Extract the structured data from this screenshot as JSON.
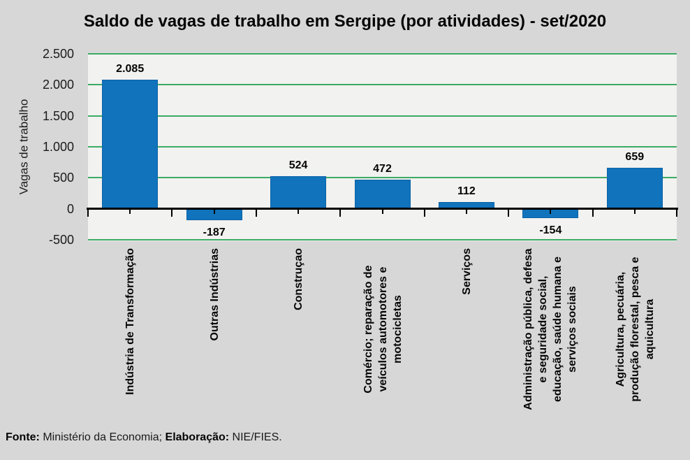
{
  "footer": {
    "fonte_label": "Fonte:",
    "fonte_value": " Ministério da Economia; ",
    "elab_label": "Elaboração:",
    "elab_value": " NIE/FIES."
  },
  "chart_data": {
    "type": "bar",
    "title": "Saldo de vagas de trabalho em Sergipe (por atividades) - set/2020",
    "xlabel": "",
    "ylabel": "Vagas de trabalho",
    "ylim": [
      -500,
      2500
    ],
    "grid": true,
    "legend": false,
    "yticks": [
      {
        "value": 2500,
        "label": "2.500"
      },
      {
        "value": 2000,
        "label": "2.000"
      },
      {
        "value": 1500,
        "label": "1.500"
      },
      {
        "value": 1000,
        "label": "1.000"
      },
      {
        "value": 500,
        "label": "500"
      },
      {
        "value": 0,
        "label": "0"
      },
      {
        "value": -500,
        "label": "-500"
      }
    ],
    "categories": [
      "Indústria de Transformação",
      "Outras Indústrias",
      "Construçao",
      "Comércio; reparação de veículos automotores e motocicletas",
      "Serviços",
      "Administração pública, defesa e seguridade social, educação, saúde humana e serviços sociais",
      "Agricultura, pecuária, produção florestal, pesca e aquicultura"
    ],
    "values": [
      2085,
      -187,
      524,
      472,
      112,
      -154,
      659
    ],
    "value_labels": [
      "2.085",
      "-187",
      "524",
      "472",
      "112",
      "-154",
      "659"
    ],
    "colors": {
      "bar": "#1073BC",
      "bar_border": "#0C63A6",
      "gridline": "#3CAA64",
      "plot_bg": "#F2F2F0",
      "outer_bg": "#D7D7D7",
      "axis": "#000000"
    }
  }
}
